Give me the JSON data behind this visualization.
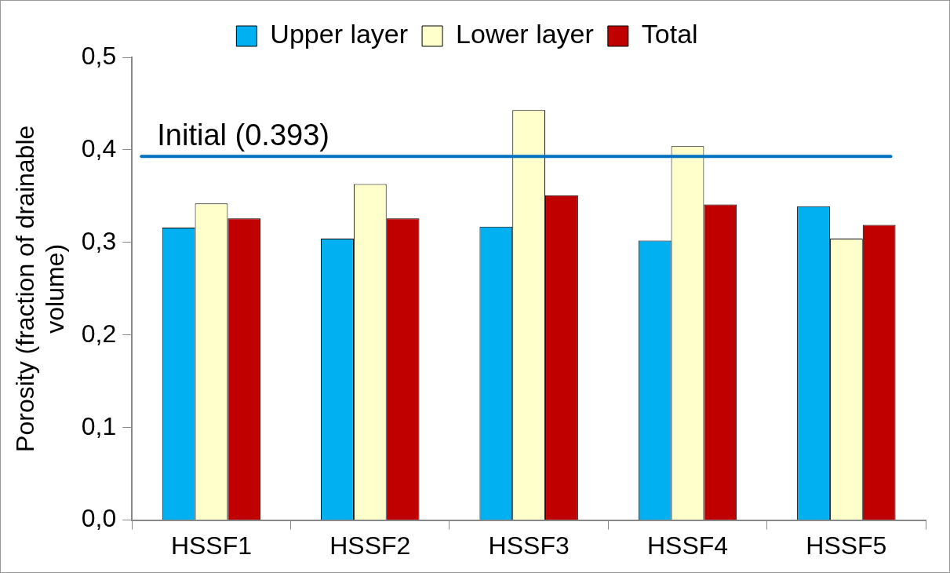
{
  "chart_data": {
    "type": "bar",
    "ylabel": "Porosity (fraction of drainable volume)",
    "categories": [
      "HSSF1",
      "HSSF2",
      "HSSF3",
      "HSSF4",
      "HSSF5"
    ],
    "series": [
      {
        "name": "Upper layer",
        "color": "#00b0f0",
        "values": [
          0.316,
          0.304,
          0.317,
          0.302,
          0.339
        ]
      },
      {
        "name": "Lower layer",
        "color": "#ffffcc",
        "values": [
          0.342,
          0.363,
          0.443,
          0.404,
          0.304
        ]
      },
      {
        "name": "Total",
        "color": "#c00000",
        "values": [
          0.326,
          0.326,
          0.351,
          0.341,
          0.319
        ]
      }
    ],
    "ylim": [
      0,
      0.5
    ],
    "yticks": [
      {
        "value": 0,
        "label": "0,0"
      },
      {
        "value": 0.1,
        "label": "0,1"
      },
      {
        "value": 0.2,
        "label": "0,2"
      },
      {
        "value": 0.3,
        "label": "0,3"
      },
      {
        "value": 0.4,
        "label": "0,4"
      },
      {
        "value": 0.5,
        "label": "0,5"
      }
    ],
    "ref_lines": [
      {
        "axis": "y",
        "value": 0.393,
        "label": "Initial (0.393)",
        "color": "#0070c0"
      }
    ],
    "grid": false,
    "legend": "top"
  }
}
